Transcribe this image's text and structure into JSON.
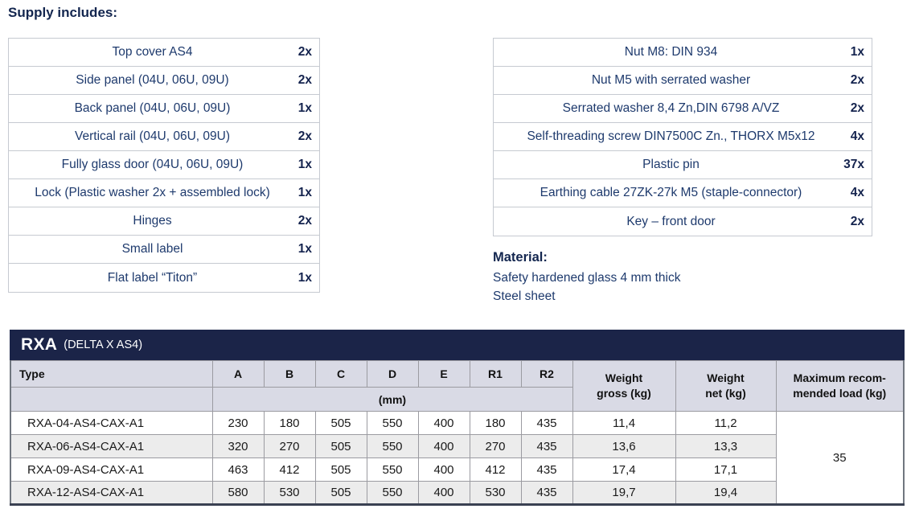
{
  "header": {
    "supply_title": "Supply includes:"
  },
  "supply_tables": {
    "left": {
      "rows": [
        {
          "item": "Top cover AS4",
          "qty": "2x"
        },
        {
          "item": "Side panel (04U, 06U, 09U)",
          "qty": "2x"
        },
        {
          "item": "Back panel (04U, 06U, 09U)",
          "qty": "1x"
        },
        {
          "item": "Vertical rail (04U, 06U, 09U)",
          "qty": "2x"
        },
        {
          "item": "Fully glass door (04U, 06U, 09U)",
          "qty": "1x"
        },
        {
          "item": "Lock (Plastic washer 2x + assembled lock)",
          "qty": "1x"
        },
        {
          "item": "Hinges",
          "qty": "2x"
        },
        {
          "item": "Small label",
          "qty": "1x"
        },
        {
          "item": "Flat label “Titon”",
          "qty": "1x"
        }
      ]
    },
    "right": {
      "rows": [
        {
          "item": "Nut M8: DIN 934",
          "qty": "1x"
        },
        {
          "item": "Nut M5 with serrated washer",
          "qty": "2x"
        },
        {
          "item": "Serrated washer 8,4 Zn,DIN 6798 A/VZ",
          "qty": "2x"
        },
        {
          "item": "Self-threading screw DIN7500C Zn., THORX M5x12",
          "qty": "4x"
        },
        {
          "item": "Plastic pin",
          "qty": "37x"
        },
        {
          "item": "Earthing cable 27ZK-27k M5 (staple-connector)",
          "qty": "4x"
        },
        {
          "item": "Key – front door",
          "qty": "2x"
        }
      ]
    }
  },
  "material": {
    "title": "Material:",
    "lines": [
      "Safety hardened glass 4 mm thick",
      "Steel sheet"
    ]
  },
  "spec": {
    "title": "RXA",
    "subtitle": "(DELTA X AS4)",
    "headers": {
      "type": "Type",
      "dims": [
        "A",
        "B",
        "C",
        "D",
        "E",
        "R1",
        "R2"
      ],
      "mm": "(mm)",
      "weight_gross": "Weight\ngross (kg)",
      "weight_net": "Weight\nnet (kg)",
      "max_load": "Maximum recom-\nmended load (kg)"
    },
    "rows": [
      {
        "type": "RXA-04-AS4-CAX-A1",
        "dims": [
          "230",
          "180",
          "505",
          "550",
          "400",
          "180",
          "435"
        ],
        "weight_gross": "11,4",
        "weight_net": "11,2"
      },
      {
        "type": "RXA-06-AS4-CAX-A1",
        "dims": [
          "320",
          "270",
          "505",
          "550",
          "400",
          "270",
          "435"
        ],
        "weight_gross": "13,6",
        "weight_net": "13,3"
      },
      {
        "type": "RXA-09-AS4-CAX-A1",
        "dims": [
          "463",
          "412",
          "505",
          "550",
          "400",
          "412",
          "435"
        ],
        "weight_gross": "17,4",
        "weight_net": "17,1"
      },
      {
        "type": "RXA-12-AS4-CAX-A1",
        "dims": [
          "580",
          "530",
          "505",
          "550",
          "400",
          "530",
          "435"
        ],
        "weight_gross": "19,7",
        "weight_net": "19,4"
      }
    ],
    "max_load_value": "35"
  },
  "colors": {
    "title_bar_navy": "#1b2448",
    "header_bg": "#d9dae5",
    "stripe_bg": "#ececec",
    "item_text_navy": "#1e3a6d",
    "heading_navy": "#13264f"
  }
}
